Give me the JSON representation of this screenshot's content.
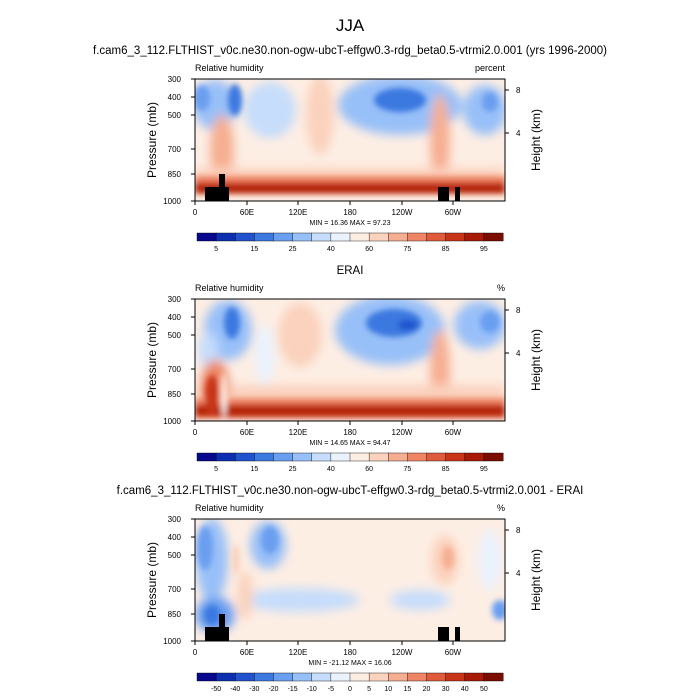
{
  "figure": {
    "title": "JJA"
  },
  "palette_rh": [
    "#08088c",
    "#0b2fb0",
    "#1f52cc",
    "#3b78e0",
    "#6a9ef0",
    "#98c0f8",
    "#c6ddfb",
    "#eaf2fd",
    "#fdeee4",
    "#fbd2bd",
    "#f6ae91",
    "#ee8666",
    "#e05a3c",
    "#c93518",
    "#a81a06",
    "#7a0c00"
  ],
  "palette_diff": [
    "#08088c",
    "#0b2fb0",
    "#1f52cc",
    "#3b78e0",
    "#6a9ef0",
    "#98c0f8",
    "#c6ddfb",
    "#eaf2fd",
    "#fdeee4",
    "#fbd2bd",
    "#f6ae91",
    "#ee8666",
    "#e05a3c",
    "#c93518",
    "#a81a06",
    "#7a0c00"
  ],
  "chart_data": [
    {
      "type": "heatmap",
      "title": "f.cam6_3_112.FLTHIST_v0c.ne30.non-ogw-ubcT-effgw0.3-rdg_beta0.5-vtrmi2.0.001 (yrs 1996-2000)",
      "left_label": "Relative humidity",
      "right_label": "percent",
      "ylabel": "Pressure (mb)",
      "y2label": "Height (km)",
      "x_ticks": [
        "0",
        "60E",
        "120E",
        "180",
        "120W",
        "60W"
      ],
      "y_ticks": [
        "300",
        "400",
        "500",
        "700",
        "850",
        "1000"
      ],
      "y2_ticks": [
        "8",
        "4"
      ],
      "stats": "MIN =  16.36  MAX =  97.23",
      "colorbar_labels": [
        "5",
        "15",
        "25",
        "40",
        "60",
        "75",
        "85",
        "95"
      ],
      "ylim": [
        1000,
        300
      ],
      "min": 16.36,
      "max": 97.23
    },
    {
      "type": "heatmap",
      "title": "ERAI",
      "left_label": "Relative humidity",
      "right_label": "%",
      "ylabel": "Pressure (mb)",
      "y2label": "Height (km)",
      "x_ticks": [
        "0",
        "60E",
        "120E",
        "180",
        "120W",
        "60W"
      ],
      "y_ticks": [
        "300",
        "400",
        "500",
        "700",
        "850",
        "1000"
      ],
      "y2_ticks": [
        "8",
        "4"
      ],
      "stats": "MIN =  14.65  MAX =  94.47",
      "colorbar_labels": [
        "5",
        "15",
        "25",
        "40",
        "60",
        "75",
        "85",
        "95"
      ],
      "ylim": [
        1000,
        300
      ],
      "min": 14.65,
      "max": 94.47
    },
    {
      "type": "heatmap",
      "title": "f.cam6_3_112.FLTHIST_v0c.ne30.non-ogw-ubcT-effgw0.3-rdg_beta0.5-vtrmi2.0.001 - ERAI",
      "left_label": "Relative humidity",
      "right_label": "%",
      "ylabel": "Pressure (mb)",
      "y2label": "Height (km)",
      "x_ticks": [
        "0",
        "60E",
        "120E",
        "180",
        "120W",
        "60W"
      ],
      "y_ticks": [
        "300",
        "400",
        "500",
        "700",
        "850",
        "1000"
      ],
      "y2_ticks": [
        "8",
        "4"
      ],
      "stats": "MIN = -21.12  MAX =  16.06",
      "colorbar_labels": [
        "-50",
        "-40",
        "-30",
        "-20",
        "-15",
        "-10",
        "-5",
        "0",
        "5",
        "10",
        "15",
        "20",
        "30",
        "40",
        "50"
      ],
      "ylim": [
        1000,
        300
      ],
      "min": -21.12,
      "max": 16.06
    }
  ]
}
